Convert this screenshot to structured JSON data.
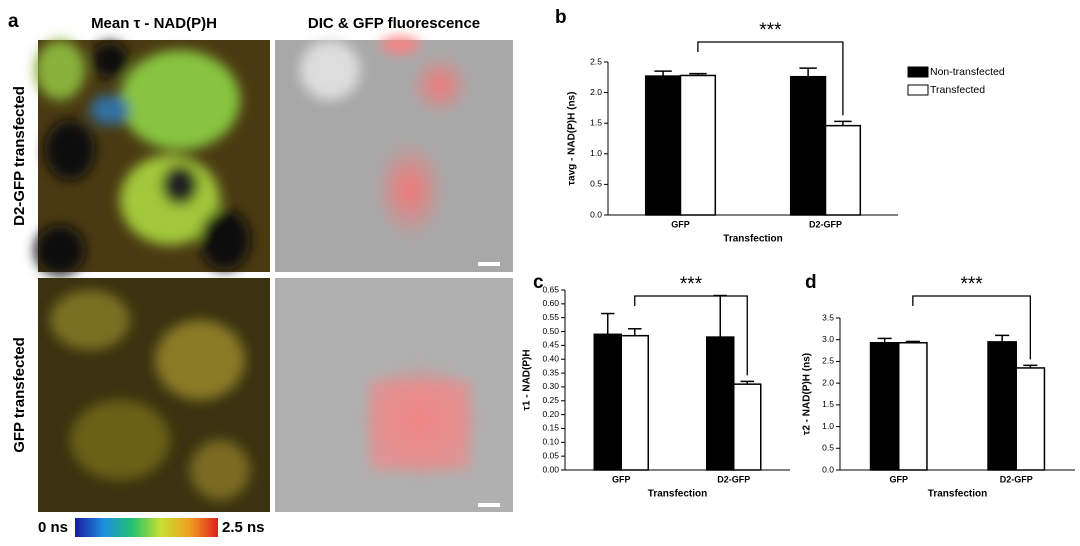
{
  "figure": {
    "panel": "a",
    "column_titles": [
      "Mean τ - NAD(P)H",
      "DIC & GFP fluorescence"
    ],
    "row_titles": [
      "D2-GFP transfected",
      "GFP transfected"
    ],
    "colorbar_min": "0 ns",
    "colorbar_max": "2.5 ns"
  },
  "chart_data": [
    {
      "type": "bar",
      "panel": "b",
      "categories": [
        "GFP",
        "D2-GFP"
      ],
      "xlabel": "Transfection",
      "ylabel": "τavg - NAD(P)H (ns)",
      "annotation": "***",
      "series": [
        {
          "name": "Non-transfected",
          "color": "#000000",
          "values": [
            2.27,
            2.26
          ],
          "errors": [
            0.08,
            0.14
          ]
        },
        {
          "name": "Transfected",
          "color": "#ffffff",
          "values": [
            2.28,
            1.46
          ],
          "errors": [
            0.03,
            0.07
          ]
        }
      ],
      "ylim": [
        0,
        2.5
      ],
      "yticks": [
        {
          "value": 0,
          "label": "0.0"
        },
        0.5,
        {
          "value": 1,
          "label": "1.0"
        },
        1.5,
        {
          "value": 2,
          "label": "2.0"
        },
        2.5
      ],
      "legend": "upper right"
    },
    {
      "type": "bar",
      "panel": "c",
      "categories": [
        "GFP",
        "D2-GFP"
      ],
      "xlabel": "Transfection",
      "ylabel": "τ1 - NAD(P)H",
      "annotation": "***",
      "series": [
        {
          "name": "Non-transfected",
          "color": "#000000",
          "values": [
            0.49,
            0.48
          ],
          "errors": [
            0.075,
            0.15
          ]
        },
        {
          "name": "Transfected",
          "color": "#ffffff",
          "values": [
            0.485,
            0.31
          ],
          "errors": [
            0.025,
            0.01
          ]
        }
      ],
      "ylim": [
        0,
        0.65
      ],
      "yticks": [
        {
          "value": 0,
          "label": "0.00"
        },
        {
          "value": 0.05,
          "label": "0.05"
        },
        {
          "value": 0.1,
          "label": "0.10"
        },
        {
          "value": 0.15,
          "label": "0.15"
        },
        {
          "value": 0.2,
          "label": "0.20"
        },
        {
          "value": 0.25,
          "label": "0.25"
        },
        {
          "value": 0.3,
          "label": "0.30"
        },
        {
          "value": 0.35,
          "label": "0.35"
        },
        {
          "value": 0.4,
          "label": "0.40"
        },
        {
          "value": 0.45,
          "label": "0.45"
        },
        {
          "value": 0.5,
          "label": "0.50"
        },
        {
          "value": 0.55,
          "label": "0.55"
        },
        {
          "value": 0.6,
          "label": "0.60"
        },
        {
          "value": 0.65,
          "label": "0.65"
        }
      ]
    },
    {
      "type": "bar",
      "panel": "d",
      "categories": [
        "GFP",
        "D2-GFP"
      ],
      "xlabel": "Transfection",
      "ylabel": "τ2 - NAD(P)H (ns)",
      "annotation": "***",
      "series": [
        {
          "name": "Non-transfected",
          "color": "#000000",
          "values": [
            2.93,
            2.95
          ],
          "errors": [
            0.1,
            0.15
          ]
        },
        {
          "name": "Transfected",
          "color": "#ffffff",
          "values": [
            2.93,
            2.35
          ],
          "errors": [
            0.03,
            0.06
          ]
        }
      ],
      "ylim": [
        0,
        3.5
      ],
      "yticks": [
        {
          "value": 0,
          "label": "0.0"
        },
        0.5,
        {
          "value": 1,
          "label": "1.0"
        },
        1.5,
        {
          "value": 2,
          "label": "2.0"
        },
        2.5,
        {
          "value": 3,
          "label": "3.0"
        },
        3.5
      ]
    }
  ]
}
